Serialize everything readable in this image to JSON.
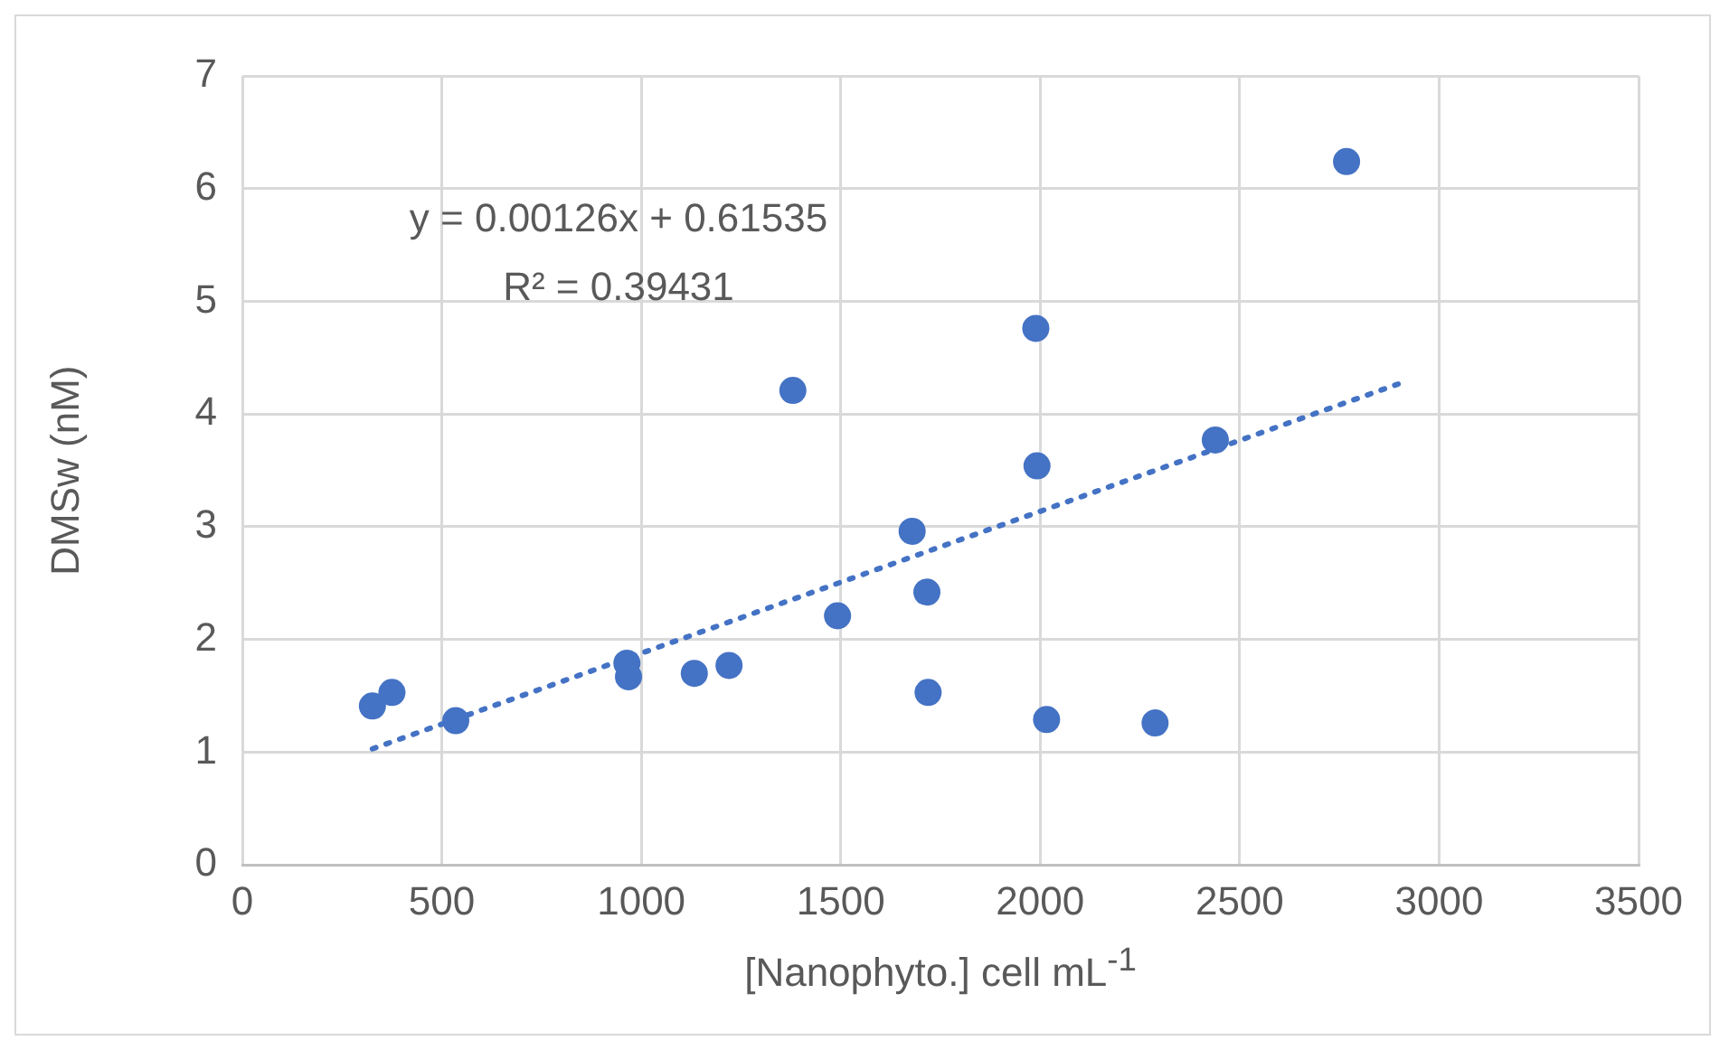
{
  "chart_data": {
    "type": "scatter",
    "xlabel": "[Nanophyto.] cell mL$^{-1}$",
    "ylabel": "DMSw (nM)",
    "annotations": [
      "y = 0.00126x + 0.61535",
      "R² = 0.39431"
    ],
    "series": [
      {
        "color": "#4472c4",
        "marker": "circle",
        "x": [
          326,
          375,
          535,
          964,
          968,
          1133,
          1220,
          1380,
          1492,
          1679,
          1716,
          1719,
          1989,
          1992,
          2016,
          2288,
          2439,
          2768
        ],
        "values": [
          1.41,
          1.53,
          1.28,
          1.79,
          1.67,
          1.7,
          1.77,
          4.21,
          2.21,
          2.96,
          2.42,
          1.53,
          4.76,
          3.54,
          1.29,
          1.26,
          3.77,
          6.24
        ]
      },
      {
        "type": "line",
        "color": "#4472c4",
        "marker": "none",
        "line_style": "dotted",
        "x": [
          326,
          2900
        ],
        "values": [
          1.03,
          4.27
        ]
      }
    ],
    "xlim": [
      0,
      3500
    ],
    "xticks": [
      0,
      500,
      1000,
      1500,
      2000,
      2500,
      3000,
      3500
    ],
    "ylim": [
      0,
      7
    ],
    "yticks": [
      0,
      1,
      2,
      3,
      4,
      5,
      6,
      7
    ],
    "grid": true,
    "legend": false
  }
}
